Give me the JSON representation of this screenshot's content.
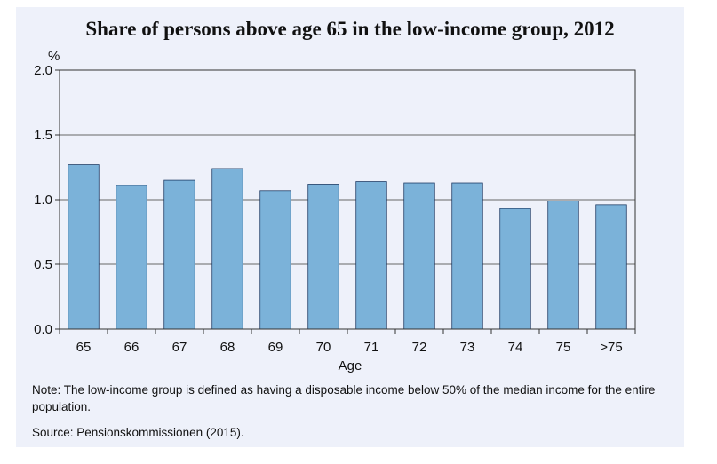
{
  "chart_data": {
    "type": "bar",
    "title": "Share of persons above age 65 in the low-income group, 2012",
    "ylabel": "%",
    "xlabel": "Age",
    "categories": [
      "65",
      "66",
      "67",
      "68",
      "69",
      "70",
      "71",
      "72",
      "73",
      "74",
      "75",
      ">75"
    ],
    "values": [
      1.27,
      1.11,
      1.15,
      1.24,
      1.07,
      1.12,
      1.14,
      1.13,
      1.13,
      0.93,
      0.99,
      0.96
    ],
    "ylim": [
      0,
      2.0
    ],
    "yticks": [
      "0.0",
      "0.5",
      "1.0",
      "1.5",
      "2.0"
    ],
    "grid": true,
    "bar_color": "#7bb2d9",
    "bar_edge_color": "#1f3d66"
  },
  "note": "Note: The low-income group is defined as having a disposable income below 50% of the median income for the entire population.",
  "source": "Source: Pensionskommissionen (2015)."
}
